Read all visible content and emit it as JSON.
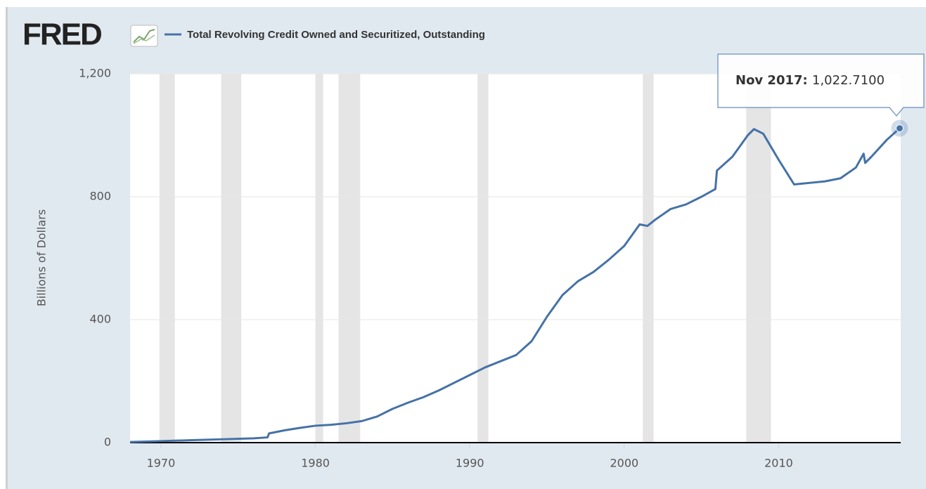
{
  "chart_data": {
    "type": "line",
    "logo": "FRED",
    "title": "Total Revolving Credit Owned and Securitized, Outstanding",
    "y_label": "Billions of Dollars",
    "xlim": [
      1968,
      2017.9
    ],
    "xticks": [
      1970,
      1980,
      1990,
      2000,
      2010
    ],
    "ylim": [
      0,
      1200
    ],
    "yticks": [
      0,
      400,
      800,
      {
        "value": 1200,
        "label": "1,200"
      }
    ],
    "grid": true,
    "recessions": [
      [
        1969.9,
        1970.9
      ],
      [
        1973.9,
        1975.2
      ],
      [
        1980.0,
        1980.5
      ],
      [
        1981.5,
        1982.9
      ],
      [
        1990.5,
        1991.2
      ],
      [
        2001.2,
        2001.9
      ],
      [
        2007.9,
        2009.5
      ]
    ],
    "series": [
      {
        "name": "Total Revolving Credit Owned and Securitized, Outstanding",
        "color": "#4572a7",
        "x": [
          1968,
          1970,
          1972,
          1974,
          1976,
          1976.9,
          1977,
          1978,
          1979,
          1980,
          1981,
          1982,
          1983,
          1984,
          1985,
          1986,
          1987,
          1988,
          1989,
          1990,
          1991,
          1992,
          1993,
          1994,
          1995,
          1996,
          1997,
          1998,
          1999,
          2000,
          2001,
          2001.5,
          2002,
          2003,
          2004,
          2005,
          2005.9,
          2006,
          2007,
          2008,
          2008.4,
          2009,
          2010,
          2011,
          2012,
          2013,
          2014,
          2015,
          2015.5,
          2015.6,
          2016,
          2017,
          2017.833
        ],
        "values": [
          2,
          5,
          8,
          11,
          14,
          17,
          30,
          40,
          48,
          55,
          58,
          63,
          70,
          85,
          110,
          130,
          148,
          170,
          195,
          220,
          245,
          265,
          285,
          330,
          410,
          480,
          525,
          555,
          595,
          640,
          710,
          705,
          725,
          760,
          775,
          800,
          825,
          885,
          930,
          1000,
          1020,
          1005,
          920,
          840,
          845,
          850,
          860,
          895,
          940,
          910,
          930,
          985,
          1022.71
        ]
      }
    ],
    "tooltip": {
      "label": "Nov 2017",
      "x": 2017.833,
      "value": 1022.71,
      "value_label": "1,022.7100"
    }
  }
}
